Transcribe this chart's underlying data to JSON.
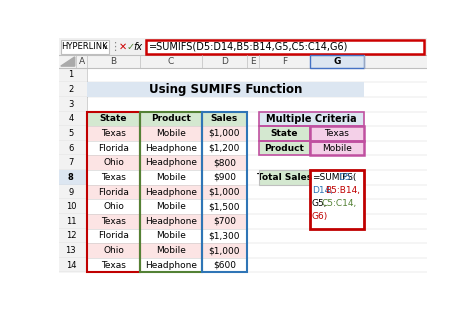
{
  "title": "Using SUMIFS Function",
  "formula_bar_text": "=SUMIFS(D5:D14,B5:B14,G5,C5:C14,G6)",
  "formula_bar_label": "HYPERLINK",
  "main_table": {
    "headers": [
      "State",
      "Product",
      "Sales"
    ],
    "rows": [
      [
        "Texas",
        "Mobile",
        "$1,000"
      ],
      [
        "Florida",
        "Headphone",
        "$1,200"
      ],
      [
        "Ohio",
        "Headphone",
        "$800"
      ],
      [
        "Texas",
        "Mobile",
        "$900"
      ],
      [
        "Florida",
        "Headphone",
        "$1,000"
      ],
      [
        "Ohio",
        "Mobile",
        "$1,500"
      ],
      [
        "Texas",
        "Headphone",
        "$700"
      ],
      [
        "Florida",
        "Mobile",
        "$1,300"
      ],
      [
        "Ohio",
        "Mobile",
        "$1,000"
      ],
      [
        "Texas",
        "Headphone",
        "$600"
      ]
    ],
    "header_fill": "#d4e8d0",
    "row_fill_alt": "#fce4e4",
    "row_fill_normal": "#ffffff",
    "border_color_col1": "#c00000",
    "border_color_col2": "#538135",
    "border_color_col3": "#2f75b6"
  },
  "criteria_table": {
    "title": "Multiple Criteria",
    "title_fill": "#dce6f1",
    "rows": [
      [
        "State",
        "Texas"
      ],
      [
        "Product",
        "Mobile"
      ]
    ],
    "label_fill": "#d4e8d0",
    "value_fill": "#f4d0e8",
    "border_color": "#c050a0"
  },
  "total_sales": {
    "label": "Total Sales",
    "label_fill": "#d4e8d0",
    "formula_fill": "#ffffff",
    "border_color": "#c00000",
    "formula_lines": [
      [
        {
          "text": "=SUMIFS(",
          "color": "#000000"
        },
        {
          "text": "D5:",
          "color": "#2f75b6"
        }
      ],
      [
        {
          "text": "D14",
          "color": "#2f75b6"
        },
        {
          "text": ",",
          "color": "#c00000"
        },
        {
          "text": "B5:B14",
          "color": "#c00000"
        },
        {
          "text": ",",
          "color": "#000000"
        }
      ],
      [
        {
          "text": "G5,",
          "color": "#000000"
        },
        {
          "text": "C5:C14",
          "color": "#538135"
        },
        {
          "text": ",",
          "color": "#000000"
        }
      ],
      [
        {
          "text": "G6)",
          "color": "#c00000"
        }
      ]
    ]
  },
  "bg_color": "#ffffff",
  "header_bar_color": "#dce6f1",
  "row_number_bg": "#f2f2f2",
  "col_header_bg": "#f2f2f2",
  "grid_color": "#d0d0d0",
  "border_gray": "#bfbfbf"
}
